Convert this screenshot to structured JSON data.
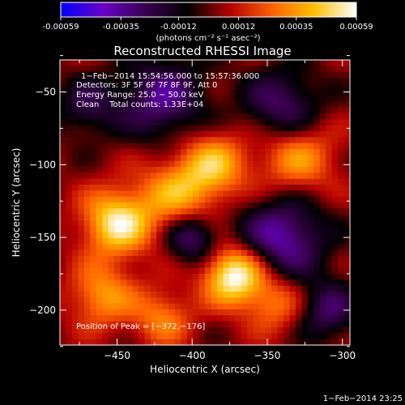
{
  "colors": {
    "background": "#000000",
    "foreground": "#ffffff"
  },
  "colorbar": {
    "tick_labels": [
      "-0.00059",
      "-0.00035",
      "-0.00012",
      "0.00012",
      "0.00035",
      "0.00059"
    ],
    "units_label": "(photons cm⁻² s⁻¹ asec⁻²)",
    "range": [
      -0.00059,
      0.00059
    ],
    "colormap": [
      "#0000ff",
      "#6a00c8",
      "#3a0050",
      "#000000",
      "#b40000",
      "#ff6000",
      "#ffc000",
      "#ffffff"
    ]
  },
  "chart_data": {
    "type": "heatmap",
    "title": "Reconstructed RHESSI Image",
    "xlabel": "Heliocentric X (arcsec)",
    "ylabel": "Heliocentric Y (arcsec)",
    "xlim": [
      -488,
      -295
    ],
    "ylim": [
      -224,
      -28
    ],
    "x_ticks": [
      -450,
      -400,
      -350,
      -300
    ],
    "y_ticks": [
      -50,
      -100,
      -150,
      -200
    ],
    "x_tick_labels": [
      "−450",
      "−400",
      "−350",
      "−300"
    ],
    "y_tick_labels": [
      "−50",
      "−100",
      "−150",
      "−200"
    ],
    "grid": false,
    "peak": {
      "x": -372,
      "y": -176
    },
    "annotations": {
      "time_range": "1−Feb−2014 15:54:56.000 to 15:57:36.000",
      "detectors": "Detectors: 3F 5F 6F 7F 8F 9F, Att 0",
      "energy": "Energy Range: 25.0 − 50.0 keV",
      "clean": "Clean    Total counts: 1.33E+04",
      "peak_text": "Position of Peak = [−372,−176]"
    },
    "blobs": [
      {
        "x": -372,
        "y": -176,
        "sigma": 14,
        "amp": 1.0
      },
      {
        "x": -450,
        "y": -140,
        "sigma": 16,
        "amp": 0.85
      },
      {
        "x": -410,
        "y": -120,
        "sigma": 18,
        "amp": 0.55
      },
      {
        "x": -385,
        "y": -100,
        "sigma": 16,
        "amp": 0.6
      },
      {
        "x": -330,
        "y": -95,
        "sigma": 18,
        "amp": 0.55
      },
      {
        "x": -460,
        "y": -190,
        "sigma": 15,
        "amp": 0.55
      },
      {
        "x": -420,
        "y": -205,
        "sigma": 14,
        "amp": 0.45
      },
      {
        "x": -345,
        "y": -195,
        "sigma": 14,
        "amp": 0.45
      },
      {
        "x": -400,
        "y": -150,
        "sigma": 12,
        "amp": -0.6
      },
      {
        "x": -340,
        "y": -150,
        "sigma": 20,
        "amp": -0.7
      },
      {
        "x": -420,
        "y": -55,
        "sigma": 20,
        "amp": -0.6
      },
      {
        "x": -340,
        "y": -60,
        "sigma": 18,
        "amp": -0.55
      },
      {
        "x": -470,
        "y": -60,
        "sigma": 14,
        "amp": -0.4
      },
      {
        "x": -310,
        "y": -200,
        "sigma": 14,
        "amp": -0.5
      }
    ]
  },
  "footer": {
    "date": "1−Feb−2014 23:25"
  }
}
